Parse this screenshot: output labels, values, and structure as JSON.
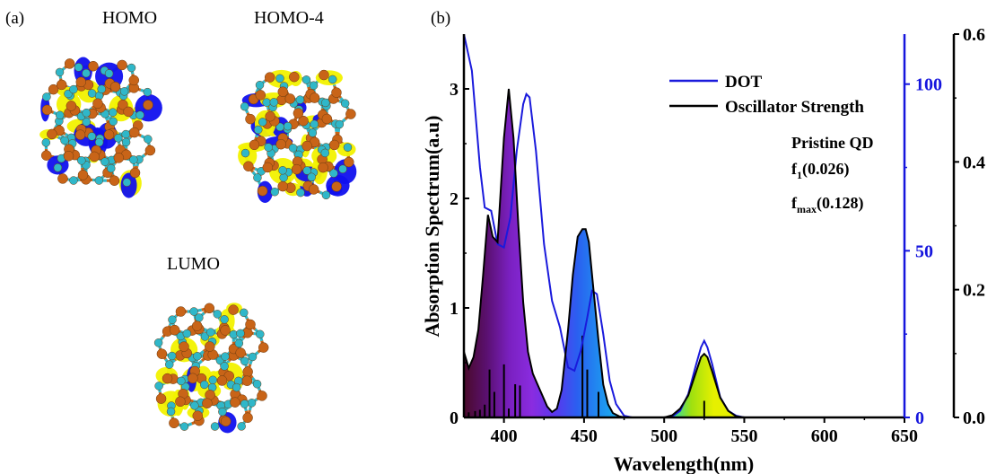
{
  "panel_a": {
    "label": "(a)",
    "orbitals": [
      {
        "name": "HOMO"
      },
      {
        "name": "HOMO-4"
      },
      {
        "name": "LUMO"
      }
    ]
  },
  "panel_b": {
    "label": "(b)"
  },
  "colors": {
    "atom_orange": "#c86418",
    "atom_cyan": "#2fb7c9",
    "lobe_blue": "#1010ee",
    "lobe_yellow": "#f2f200",
    "dot_line": "#1a1adc",
    "osc_line": "#000000",
    "axis_blue": "#1515dd"
  },
  "chart_data": {
    "type": "line",
    "xlabel": "Wavelength(nm)",
    "ylabel": "Absorption Spectrum(a.u)",
    "xlim": [
      375,
      650
    ],
    "x_ticks": [
      400,
      450,
      500,
      550,
      600,
      650
    ],
    "left_axis": {
      "ylim": [
        0,
        3.5
      ],
      "ticks": [
        0,
        1,
        2,
        3
      ]
    },
    "blue_axis": {
      "ylim": [
        0,
        115
      ],
      "ticks": [
        0,
        50,
        100
      ]
    },
    "right_axis": {
      "ylim": [
        0,
        0.6
      ],
      "ticks": [
        "0.0",
        "0.2",
        "0.4",
        "0.6"
      ]
    },
    "series": [
      {
        "name": "DOT",
        "axis": "blue",
        "x": [
          375,
          380,
          385,
          388,
          392,
          396,
          400,
          404,
          408,
          412,
          414,
          416,
          420,
          425,
          430,
          435,
          440,
          444,
          448,
          452,
          455,
          458,
          462,
          466,
          470,
          475,
          480,
          490,
          500,
          505,
          510,
          515,
          520,
          523,
          525,
          527,
          530,
          535,
          540,
          545,
          550,
          560,
          580,
          600,
          620,
          650
        ],
        "y": [
          115,
          104,
          75,
          63,
          62,
          52,
          51,
          60,
          80,
          94,
          97,
          96,
          80,
          52,
          35,
          27,
          15,
          14,
          20,
          30,
          38,
          37,
          25,
          11,
          4,
          0.5,
          0,
          0,
          0,
          0.3,
          2,
          7,
          16,
          21,
          23,
          21,
          16,
          6,
          2,
          0.5,
          0,
          0,
          0,
          0,
          0,
          0
        ]
      },
      {
        "name": "Oscillator Strength",
        "axis": "left",
        "x": [
          375,
          378,
          381,
          384,
          387,
          390,
          393,
          396,
          400,
          403,
          406,
          409,
          412,
          415,
          418,
          421,
          424,
          427,
          430,
          433,
          436,
          440,
          443,
          446,
          449,
          451,
          453,
          456,
          459,
          462,
          465,
          468,
          472,
          476,
          480,
          490,
          500,
          505,
          510,
          515,
          520,
          523,
          525,
          527,
          530,
          535,
          540,
          545,
          550,
          560,
          580,
          600,
          650
        ],
        "y": [
          0.6,
          0.45,
          0.55,
          0.8,
          1.3,
          1.85,
          1.65,
          1.6,
          2.55,
          3.0,
          2.55,
          1.75,
          1.05,
          0.6,
          0.4,
          0.3,
          0.2,
          0.1,
          0.05,
          0.08,
          0.25,
          0.8,
          1.3,
          1.65,
          1.72,
          1.72,
          1.6,
          1.15,
          0.7,
          0.3,
          0.12,
          0.04,
          0.01,
          0,
          0,
          0,
          0,
          0.02,
          0.08,
          0.2,
          0.42,
          0.55,
          0.58,
          0.55,
          0.42,
          0.18,
          0.06,
          0.01,
          0,
          0,
          0,
          0,
          0
        ]
      }
    ],
    "sticks": {
      "axis": "right",
      "x": [
        378,
        382,
        385,
        388,
        391,
        394,
        400,
        403,
        407,
        410,
        449,
        452,
        459,
        525
      ],
      "y": [
        0.008,
        0.01,
        0.012,
        0.02,
        0.075,
        0.04,
        0.083,
        0.014,
        0.052,
        0.05,
        0.128,
        0.075,
        0.04,
        0.026
      ]
    },
    "fill_gradient": [
      "#4a0a2a",
      "#5a1070",
      "#7a20c0",
      "#8a2ce0",
      "#5a36ee",
      "#2a60f0",
      "#1f8ff0",
      "#18b8ee",
      "#15d0e8",
      "#10d8d0",
      "#9ee010",
      "#e6f000"
    ],
    "legend": {
      "placement": "top-right"
    },
    "annotation": {
      "title": "Pristine QD",
      "f1_main": "f",
      "f1_sub": "1",
      "f1_val": "(0.026)",
      "fmax_main": "f",
      "fmax_sub": "max",
      "fmax_val": "(0.128)"
    }
  }
}
